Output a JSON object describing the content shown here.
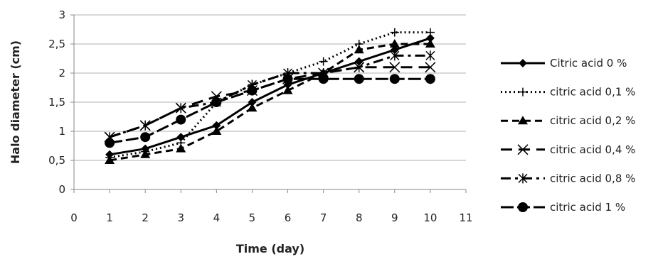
{
  "chart_data": {
    "type": "line",
    "xlabel": "Time (day)",
    "ylabel": "Halo diameter (cm)",
    "xlim": [
      0,
      11
    ],
    "ylim": [
      0,
      3
    ],
    "x_ticks": [
      "0",
      "1",
      "2",
      "3",
      "4",
      "5",
      "6",
      "7",
      "8",
      "9",
      "10",
      "11"
    ],
    "y_ticks": [
      "0",
      "0,5",
      "1",
      "1,5",
      "2",
      "2,5",
      "3"
    ],
    "grid": "horizontal",
    "legend_position": "right",
    "x": [
      1,
      2,
      3,
      4,
      5,
      6,
      7,
      8,
      9,
      10
    ],
    "series": [
      {
        "name": "Citric acid 0 %",
        "values": [
          0.6,
          0.7,
          0.9,
          1.1,
          1.5,
          1.8,
          2.0,
          2.2,
          2.4,
          2.6
        ],
        "marker": "diamond",
        "dash": "solid"
      },
      {
        "name": "citric acid 0,1 %",
        "values": [
          0.55,
          0.65,
          0.8,
          1.5,
          1.8,
          2.0,
          2.2,
          2.5,
          2.7,
          2.7
        ],
        "marker": "plus",
        "dash": "dotted"
      },
      {
        "name": "citric acid 0,2 %",
        "values": [
          0.5,
          0.6,
          0.7,
          1.0,
          1.4,
          1.7,
          2.0,
          2.4,
          2.5,
          2.5
        ],
        "marker": "triangle",
        "dash": "dashed"
      },
      {
        "name": "citric acid 0,4 %",
        "values": [
          0.9,
          1.1,
          1.4,
          1.6,
          1.7,
          1.9,
          2.0,
          2.1,
          2.1,
          2.1
        ],
        "marker": "x",
        "dash": "longdash"
      },
      {
        "name": "citric acid 0,8 %",
        "values": [
          0.9,
          1.1,
          1.4,
          1.5,
          1.8,
          2.0,
          2.0,
          2.1,
          2.3,
          2.3
        ],
        "marker": "asterisk",
        "dash": "dashdot"
      },
      {
        "name": "citric acid 1 %",
        "values": [
          0.8,
          0.9,
          1.2,
          1.5,
          1.7,
          1.9,
          1.9,
          1.9,
          1.9,
          1.9
        ],
        "marker": "circle",
        "dash": "dashsolid"
      }
    ]
  }
}
